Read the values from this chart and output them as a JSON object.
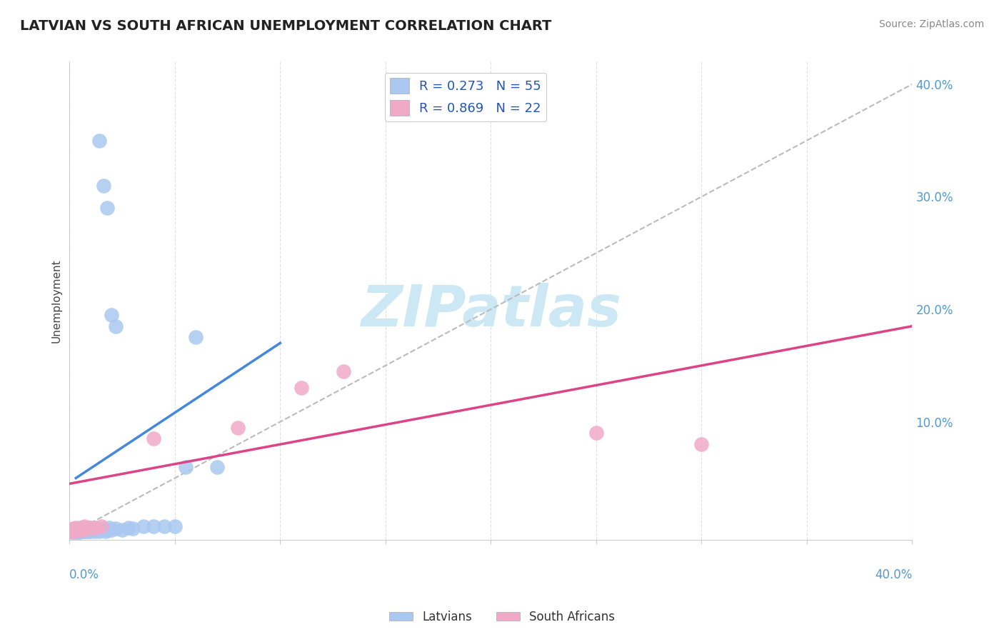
{
  "title": "LATVIAN VS SOUTH AFRICAN UNEMPLOYMENT CORRELATION CHART",
  "source": "Source: ZipAtlas.com",
  "ylabel": "Unemployment",
  "latvian_R": 0.273,
  "latvian_N": 55,
  "sa_R": 0.869,
  "sa_N": 22,
  "latvian_color": "#aac8f0",
  "sa_color": "#f0aac8",
  "latvian_line_color": "#4488dd",
  "sa_line_color": "#dd4488",
  "diag_line_color": "#bbbbbb",
  "background_color": "#ffffff",
  "watermark_color": "#cce8f4",
  "grid_color": "#e0e0e0",
  "xmin": 0.0,
  "xmax": 0.4,
  "ymin": -0.005,
  "ymax": 0.42,
  "latvian_x": [
    0.001,
    0.001,
    0.001,
    0.002,
    0.002,
    0.002,
    0.002,
    0.003,
    0.003,
    0.003,
    0.003,
    0.004,
    0.004,
    0.004,
    0.005,
    0.005,
    0.005,
    0.006,
    0.006,
    0.006,
    0.007,
    0.007,
    0.007,
    0.008,
    0.008,
    0.009,
    0.009,
    0.01,
    0.01,
    0.011,
    0.012,
    0.013,
    0.014,
    0.015,
    0.016,
    0.017,
    0.018,
    0.019,
    0.02,
    0.022,
    0.025,
    0.028,
    0.03,
    0.035,
    0.04,
    0.045,
    0.05,
    0.055,
    0.06,
    0.07,
    0.014,
    0.016,
    0.018,
    0.02,
    0.022
  ],
  "latvian_y": [
    0.002,
    0.003,
    0.004,
    0.002,
    0.003,
    0.004,
    0.005,
    0.002,
    0.003,
    0.004,
    0.005,
    0.002,
    0.003,
    0.005,
    0.002,
    0.004,
    0.006,
    0.003,
    0.004,
    0.005,
    0.003,
    0.004,
    0.006,
    0.003,
    0.005,
    0.003,
    0.005,
    0.003,
    0.006,
    0.004,
    0.003,
    0.005,
    0.003,
    0.004,
    0.005,
    0.003,
    0.004,
    0.006,
    0.004,
    0.005,
    0.004,
    0.006,
    0.005,
    0.007,
    0.007,
    0.007,
    0.007,
    0.06,
    0.175,
    0.06,
    0.35,
    0.31,
    0.29,
    0.195,
    0.185
  ],
  "sa_x": [
    0.001,
    0.002,
    0.002,
    0.003,
    0.003,
    0.004,
    0.005,
    0.006,
    0.006,
    0.007,
    0.007,
    0.008,
    0.009,
    0.01,
    0.012,
    0.015,
    0.04,
    0.08,
    0.11,
    0.13,
    0.25,
    0.3
  ],
  "sa_y": [
    0.003,
    0.003,
    0.005,
    0.004,
    0.006,
    0.004,
    0.005,
    0.004,
    0.006,
    0.005,
    0.007,
    0.005,
    0.006,
    0.006,
    0.006,
    0.007,
    0.085,
    0.095,
    0.13,
    0.145,
    0.09,
    0.08
  ],
  "latvian_line_x": [
    0.003,
    0.1
  ],
  "latvian_line_y": [
    0.05,
    0.17
  ],
  "sa_line_x": [
    0.0,
    0.4
  ],
  "sa_line_y": [
    0.045,
    0.185
  ]
}
